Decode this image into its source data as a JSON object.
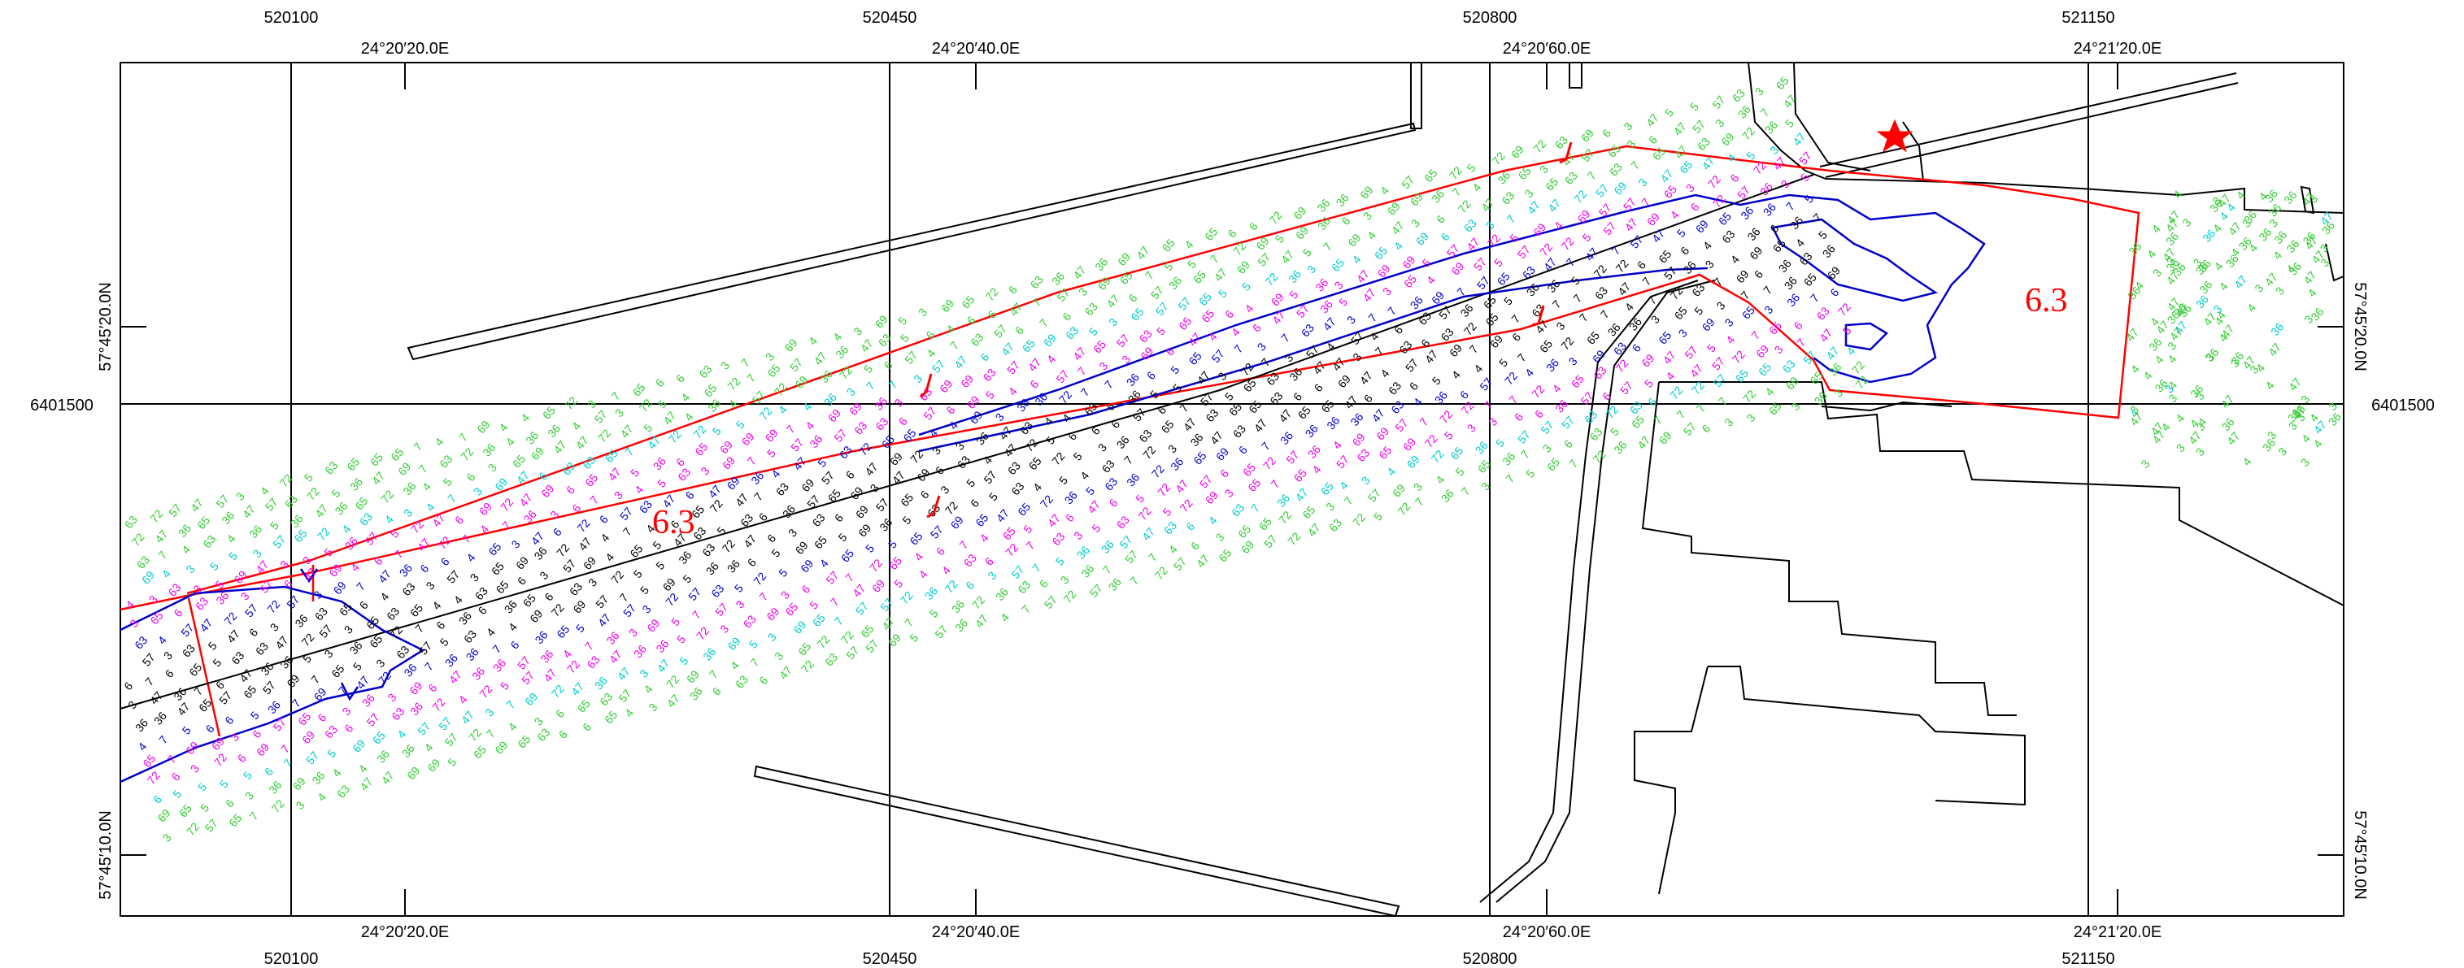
{
  "map": {
    "easting_labels": [
      "520100",
      "520450",
      "520800",
      "521150"
    ],
    "northing_label": "6401500",
    "longitude_labels": [
      "24°20′20.0E",
      "24°20′40.0E",
      "24°20′60.0E",
      "24°21′20.0E"
    ],
    "latitude_labels": [
      "57°45′20.0N",
      "57°45′10.0N"
    ],
    "depth_annotations": [
      "6.3",
      "6.3"
    ],
    "colors": {
      "frame": "#000000",
      "boundary": "#ff0000",
      "contour": "#0000cc",
      "depth_shallow": "#33cc33",
      "depth_mid_low": "#00cccc",
      "depth_mid": "#ee00ee",
      "depth_deep": "#0000cc",
      "depth_deepest": "#000000"
    },
    "marker_icon": "red-star-icon",
    "sounding_samples": [
      "3",
      "36",
      "4",
      "47",
      "5",
      "57",
      "6",
      "63",
      "65",
      "69",
      "7",
      "72"
    ]
  }
}
